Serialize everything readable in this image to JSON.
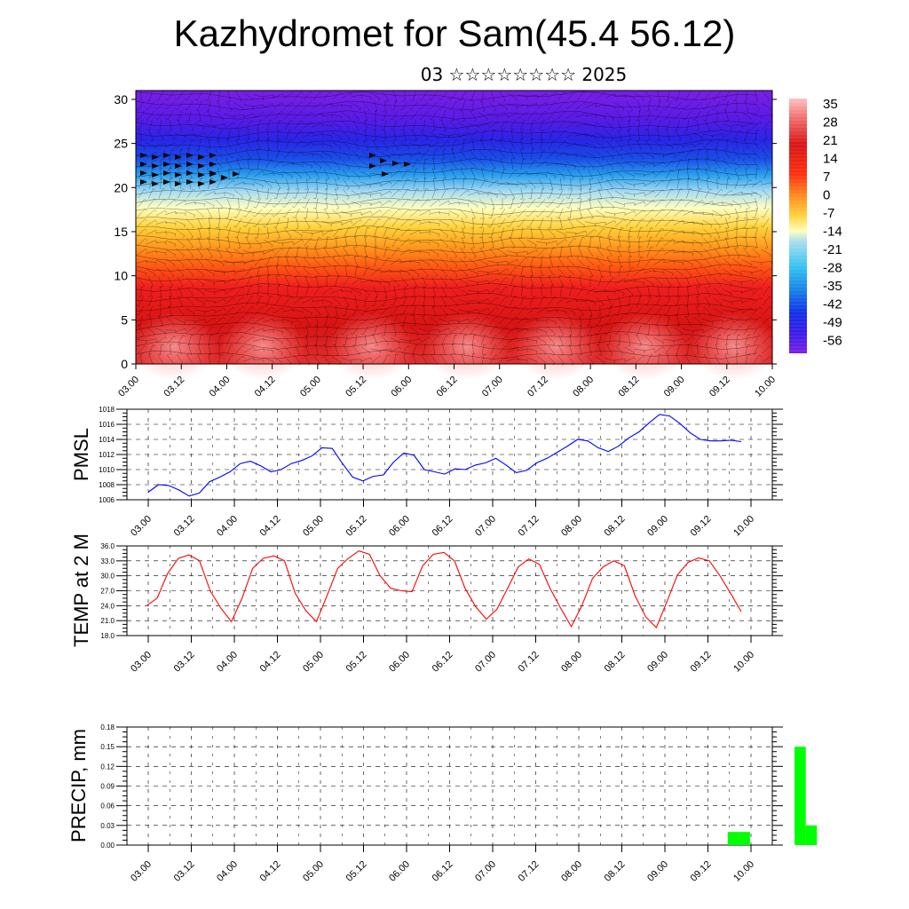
{
  "header": {
    "title": "Kazhydromet for Sam(45.4 56.12)",
    "subtitle": "03 ☆☆☆☆☆☆☆☆ 2025"
  },
  "colors": {
    "pmsl_line": "#0000ff",
    "temp_line": "#ff0000",
    "precip_bar": "#00ff00",
    "colorbar": [
      "#7a1fe6",
      "#3a1be8",
      "#1030e8",
      "#1a8be8",
      "#35c3f0",
      "#a8def0",
      "#ffffbe",
      "#ffd23c",
      "#ff9a1e",
      "#ff5a14",
      "#f01e1e",
      "#d81414",
      "#f06a6a",
      "#ffc0c0"
    ]
  },
  "time_ticks": [
    "03.00",
    "03.12",
    "04.00",
    "04.12",
    "05.00",
    "05.12",
    "06.00",
    "06.12",
    "07.00",
    "07.12",
    "08.00",
    "08.12",
    "09.00",
    "09.12",
    "10.00"
  ],
  "chart_data": [
    {
      "type": "heatmap",
      "name": "cross-section",
      "xlabel": "",
      "ylabel": "",
      "y_ticks": [
        0,
        5,
        10,
        15,
        20,
        25,
        30
      ],
      "ylim": [
        0,
        31
      ],
      "colorbar_labels": [
        "35",
        "28",
        "21",
        "14",
        "7",
        "0",
        "-7",
        "-14",
        "-21",
        "-28",
        "-35",
        "-42",
        "-49",
        "-56"
      ]
    },
    {
      "type": "line",
      "name": "PMSL",
      "ylabel": "PMSL",
      "ylim": [
        1006,
        1018
      ],
      "y_ticks": [
        "1006",
        "1008",
        "1010",
        "1012",
        "1014",
        "1016",
        "1018"
      ],
      "color": "#0000ff",
      "values": [
        1007.0,
        1008.0,
        1007.9,
        1007.3,
        1006.5,
        1006.9,
        1008.4,
        1009.0,
        1009.7,
        1010.8,
        1011.1,
        1010.5,
        1009.7,
        1010.0,
        1010.8,
        1011.2,
        1011.8,
        1012.9,
        1012.8,
        1010.8,
        1009.0,
        1008.5,
        1009.1,
        1009.3,
        1011.0,
        1012.2,
        1011.9,
        1010.0,
        1009.7,
        1009.4,
        1010.1,
        1010.0,
        1010.6,
        1010.9,
        1011.5,
        1010.6,
        1009.6,
        1009.9,
        1010.9,
        1011.5,
        1012.3,
        1013.1,
        1014.0,
        1013.8,
        1012.9,
        1012.4,
        1013.1,
        1014.2,
        1015.0,
        1016.2,
        1017.3,
        1017.1,
        1016.1,
        1014.9,
        1014.0,
        1013.8,
        1013.8,
        1013.9,
        1013.7
      ]
    },
    {
      "type": "line",
      "name": "TEMP at 2 M",
      "ylabel": "TEMP at 2 M",
      "ylim": [
        18,
        36
      ],
      "y_ticks": [
        "18.0",
        "21.0",
        "24.0",
        "27.0",
        "30.0",
        "33.0",
        "36.0"
      ],
      "color": "#ff0000",
      "values": [
        24.0,
        25.5,
        30.5,
        33.5,
        34.2,
        33.0,
        27.0,
        23.5,
        20.8,
        25.5,
        31.5,
        33.5,
        34.0,
        33.0,
        26.5,
        23.0,
        20.8,
        26.0,
        31.5,
        33.5,
        35.0,
        34.3,
        30.0,
        27.5,
        27.0,
        26.8,
        32.0,
        34.3,
        34.7,
        33.0,
        27.5,
        23.8,
        21.3,
        23.3,
        27.5,
        31.8,
        33.4,
        32.3,
        27.5,
        23.5,
        19.8,
        24.0,
        29.5,
        31.8,
        33.0,
        32.0,
        26.0,
        21.8,
        19.6,
        24.8,
        30.2,
        32.7,
        33.6,
        33.0,
        30.0,
        26.5,
        22.8
      ]
    },
    {
      "type": "bar",
      "name": "PRECIP",
      "ylabel": "PRECIP, mm",
      "ylim": [
        0,
        0.18
      ],
      "y_ticks": [
        "0.00",
        "0.03",
        "0.06",
        "0.09",
        "0.12",
        "0.15",
        "0.18"
      ],
      "color": "#00ff00",
      "bars": [
        {
          "x": 6.5,
          "value": 0.02
        },
        {
          "x": 6.625,
          "value": 0.02
        },
        {
          "x": 7.25,
          "value": 0.15
        },
        {
          "x": 7.375,
          "value": 0.03
        }
      ]
    }
  ]
}
